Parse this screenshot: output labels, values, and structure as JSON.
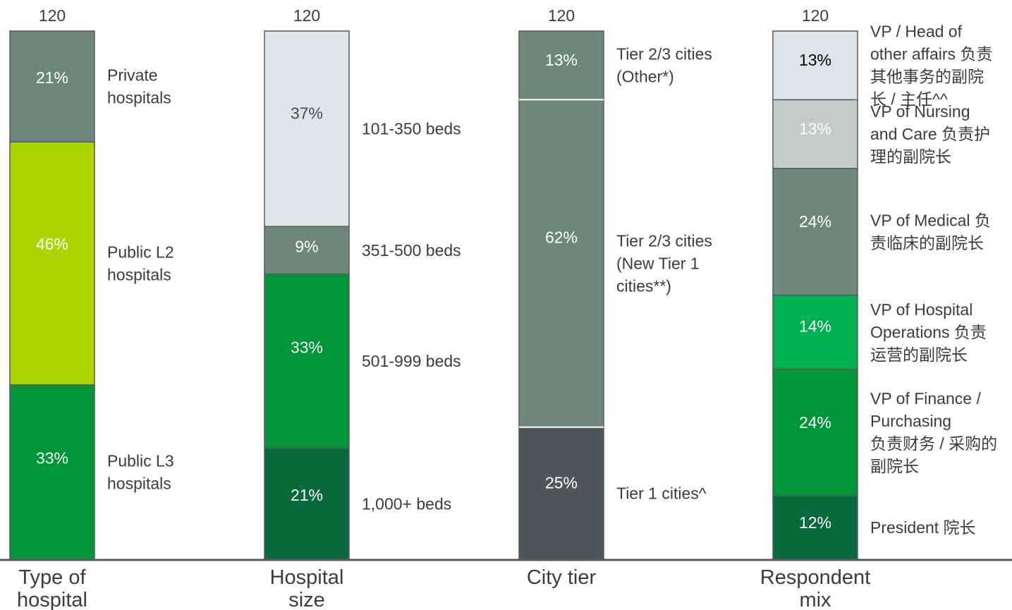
{
  "colors": {
    "dark_green": "#086a3b",
    "green": "#009639",
    "bright_green": "#00b14f",
    "lime": "#acd400",
    "gray_green": "#6e877a",
    "light_gray_green": "#c3ccc6",
    "pale_blue": "#dde5ec",
    "charcoal": "#4e565b",
    "axis": "#555a5e",
    "text": "#3c3c3c"
  },
  "chart_data": [
    {
      "type": "bar",
      "stacked": true,
      "category": "Type of hospital",
      "total": "120",
      "segments": [
        {
          "label": "Public L3 hospitals",
          "value": 33,
          "display": "33%",
          "color": "green",
          "text_color": "light"
        },
        {
          "label": "Public L2 hospitals",
          "value": 46,
          "display": "46%",
          "color": "lime",
          "text_color": "light"
        },
        {
          "label": "Private hospitals",
          "value": 21,
          "display": "21%",
          "color": "gray_green",
          "text_color": "light"
        }
      ]
    },
    {
      "type": "bar",
      "stacked": true,
      "category": "Hospital size",
      "total": "120",
      "segments": [
        {
          "label": "1,000+ beds",
          "value": 21,
          "display": "21%",
          "color": "dark_green",
          "text_color": "light"
        },
        {
          "label": "501-999 beds",
          "value": 33,
          "display": "33%",
          "color": "green",
          "text_color": "light"
        },
        {
          "label": "351-500 beds",
          "value": 9,
          "display": "9%",
          "color": "gray_green",
          "text_color": "light"
        },
        {
          "label": "101-350 beds",
          "value": 37,
          "display": "37%",
          "color": "pale_blue",
          "text_color": "dark"
        }
      ]
    },
    {
      "type": "bar",
      "stacked": true,
      "category": "City tier",
      "total": "120",
      "segments": [
        {
          "label": "Tier 1 cities^",
          "value": 25,
          "display": "25%",
          "color": "charcoal",
          "text_color": "light"
        },
        {
          "label": "Tier 2/3 cities (New Tier 1 cities**)",
          "value": 62,
          "display": "62%",
          "color": "gray_green",
          "text_color": "light"
        },
        {
          "label": "Tier 2/3 cities (Other*)",
          "value": 13,
          "display": "13%",
          "color": "gray_green",
          "text_color": "light"
        }
      ]
    },
    {
      "type": "bar",
      "stacked": true,
      "category": "Respondent mix",
      "total": "120",
      "segments": [
        {
          "label": "President 院长",
          "value": 12,
          "display": "12%",
          "color": "dark_green",
          "text_color": "light"
        },
        {
          "label": "VP of Finance / Purchasing 负责财务 / 采购的副院长",
          "value": 24,
          "display": "24%",
          "color": "green",
          "text_color": "light"
        },
        {
          "label": "VP of Hospital Operations 负责运营的副院长",
          "value": 14,
          "display": "14%",
          "color": "bright_green",
          "text_color": "light"
        },
        {
          "label": "VP of Medical 负责临床的副院长",
          "value": 24,
          "display": "24%",
          "color": "gray_green",
          "text_color": "light"
        },
        {
          "label": "VP of Nursing and Care 负责护理的副院长",
          "value": 13,
          "display": "13%",
          "color": "light_gray_green",
          "text_color": "light"
        },
        {
          "label": "VP / Head of other affairs 负责其他事务的副院长 / 主任^^",
          "value": 13,
          "display": "13%",
          "color": "pale_blue",
          "text_color": "black"
        }
      ]
    }
  ]
}
